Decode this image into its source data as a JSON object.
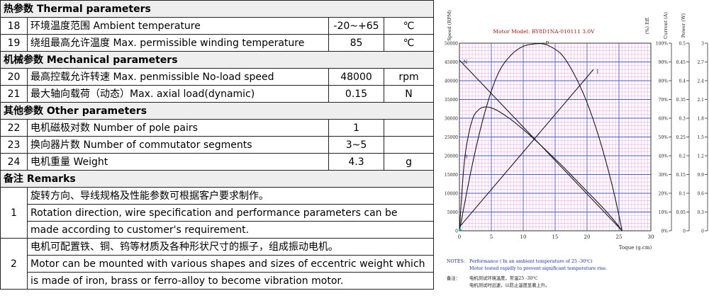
{
  "table": {
    "sections": {
      "thermal": "热参数  Thermal parameters",
      "mechanical": "机械参数 Mechanical parameters",
      "other": "其他参数  Other parameters",
      "remarks": "备注 Remarks"
    },
    "rows": [
      {
        "no": "18",
        "desc": "环境温度范围  Ambient temperature",
        "value": "-20~+65",
        "unit": "℃"
      },
      {
        "no": "19",
        "desc": "绕组最高允许温度  Max. permissible winding temperature",
        "value": "85",
        "unit": "℃"
      },
      {
        "no": "20",
        "desc": "最高控载允许转速 Max. penmissible No-load speed",
        "value": "48000",
        "unit": "rpm"
      },
      {
        "no": "21",
        "desc": "最大轴向载荷（动态）Max. axial load(dynamic)",
        "value": "0.15",
        "unit": "N"
      },
      {
        "no": "22",
        "desc": "电机磁极对数  Number of pole pairs",
        "value": "1",
        "unit": ""
      },
      {
        "no": "23",
        "desc": "换向器片数  Number of commutator segments",
        "value": "3~5",
        "unit": ""
      },
      {
        "no": "24",
        "desc": "电机重量 Weight",
        "value": "4.3",
        "unit": "g"
      }
    ],
    "remarks": [
      {
        "no": "1",
        "lines": [
          "旋转方向、导线规格及性能参数可根据客户要求制作。",
          "Rotation direction, wire specification and performance parameters can be",
          "made according to customer's requirement."
        ]
      },
      {
        "no": "2",
        "lines": [
          "电机可配置铁、铜、钨等材质及各种形状尺寸的振子，组成振动电机。",
          "Motor can be mounted with various shapes and sizes of eccentric weight which",
          "is made of iron, brass or ferro-alloy to become vibration motor."
        ]
      }
    ]
  },
  "chart_data": {
    "type": "line",
    "title": "Motor Model: BY8D1NA-010111  3.0V",
    "xlabel": "Toque (g.cm)",
    "xlim": [
      0,
      30
    ],
    "x_ticks": [
      "0",
      "5",
      "10",
      "15",
      "20",
      "25",
      "30"
    ],
    "axes": [
      {
        "label": "Speed (RPM)",
        "lim": [
          0,
          50000
        ],
        "ticks": [
          "0",
          "5000",
          "10000",
          "15000",
          "20000",
          "25000",
          "30000",
          "35000",
          "40000",
          "45000",
          "50000"
        ]
      },
      {
        "label": "(%) Eff.",
        "lim": [
          0,
          100
        ],
        "ticks": [
          "0%",
          "10%",
          "20%",
          "30%",
          "40%",
          "50%",
          "60%",
          "70%",
          "80%",
          "90%",
          "100%"
        ]
      },
      {
        "label": "Current (A)",
        "lim": [
          0,
          0.5
        ],
        "ticks": [
          "0",
          "0.05",
          "0.1",
          "0.15",
          "0.2",
          "0.25",
          "0.3",
          "0.35",
          "0.4",
          "0.45",
          "0.5"
        ]
      },
      {
        "label": "Power (W)",
        "lim": [
          0,
          3
        ],
        "ticks": [
          "0",
          "0.3",
          "0.6",
          "0.9",
          "1.2",
          "1.5",
          "1.8",
          "2.1",
          "2.4",
          "2.7",
          "3"
        ]
      }
    ],
    "series": [
      {
        "name": "N",
        "axis": "Speed (RPM)",
        "x": [
          0,
          25.5
        ],
        "y": [
          45500,
          0
        ]
      },
      {
        "name": "I",
        "axis": "Current (A)",
        "x": [
          0,
          21
        ],
        "y": [
          0.01,
          0.43
        ]
      },
      {
        "name": "P",
        "axis": "Power (W)",
        "x": [
          0,
          2,
          4,
          6,
          8,
          10,
          12,
          13,
          14,
          16,
          18,
          20,
          22,
          24,
          25.5
        ],
        "y": [
          0,
          1.05,
          1.9,
          2.5,
          2.8,
          2.95,
          2.99,
          2.99,
          2.96,
          2.82,
          2.5,
          2.05,
          1.45,
          0.7,
          0
        ]
      },
      {
        "name": "η",
        "axis": "(%) Eff.",
        "x": [
          0,
          0.5,
          1,
          2,
          3,
          4,
          5,
          6,
          8,
          10,
          12,
          14,
          16,
          18,
          20,
          22,
          24,
          25.5
        ],
        "y": [
          0,
          26,
          43,
          59,
          64.5,
          66,
          65.5,
          64,
          59.5,
          54,
          48,
          41.5,
          35,
          28,
          21,
          14,
          6.5,
          0
        ]
      }
    ],
    "notes": {
      "en_label": "NOTES:",
      "en_lines": [
        "Performance ( In an ambient temperature of 25 -30℃)",
        "Motor tested rapidly to prevent significant temperature rise."
      ],
      "zh_label": "备注：",
      "zh_lines": [
        "电机测试环境温度，常温25 -30℃",
        "电机测试时迅速，以防止温度显著上升。"
      ]
    },
    "colors": {
      "curve": "#1a1a1a",
      "grid_major": "#4b5ad0",
      "grid_minor": "#d84ec8",
      "title": "#b01818",
      "notes": "#1a2ea8",
      "origin_marker": "#19a8a8"
    }
  }
}
